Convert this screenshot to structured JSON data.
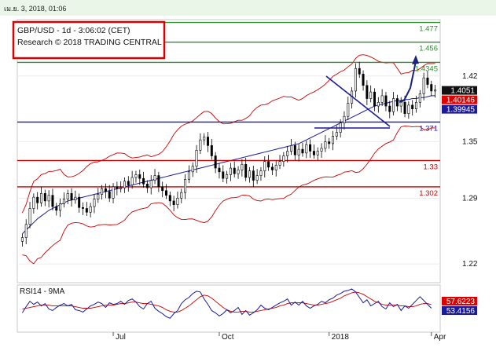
{
  "header": {
    "timestamp": "เม.ย. 3, 2018, 01:06",
    "title_line1": "GBP/USD - 1d - 3:06:02 (CET)",
    "title_line2": "Research © 2018 TRADING CENTRAL"
  },
  "colors": {
    "resistance": "#2e8b2e",
    "support_blue": "#1a1a9a",
    "support_red": "#cc0000",
    "candle": "#000000",
    "bollinger": "#cc0000",
    "ma": "#1a1a9a",
    "rsi": "#1a1a9a",
    "rsi_ma": "#cc0000",
    "projection": "#1a237e",
    "header_bg": "#eaf6e8"
  },
  "chart_data": [
    {
      "type": "candlestick",
      "ylim": [
        1.2,
        1.48
      ],
      "y_ticks": [
        "1.42",
        "1.35",
        "1.29",
        "1.22"
      ],
      "x_ticks": [
        "Jul",
        "Oct",
        "2018",
        "Apr"
      ],
      "levels": [
        {
          "value": 1.477,
          "label": "1.477",
          "color": "green"
        },
        {
          "value": 1.456,
          "label": "1.456",
          "color": "green"
        },
        {
          "value": 1.4345,
          "label": "1.4345",
          "color": "green"
        },
        {
          "value": 1.371,
          "label": "1.371",
          "color": "blue"
        },
        {
          "value": 1.33,
          "label": "1.33",
          "color": "red"
        },
        {
          "value": 1.302,
          "label": "1.302",
          "color": "red"
        }
      ],
      "price_tags": [
        {
          "value": 1.4051,
          "label": "1.4051",
          "style": "black"
        },
        {
          "value": 1.40146,
          "label": "1.40146",
          "style": "red"
        },
        {
          "value": 1.39945,
          "label": "1.39945",
          "style": "blue"
        }
      ],
      "close_series": [
        1.248,
        1.262,
        1.279,
        1.291,
        1.285,
        1.295,
        1.287,
        1.293,
        1.281,
        1.277,
        1.284,
        1.289,
        1.295,
        1.288,
        1.291,
        1.28,
        1.279,
        1.275,
        1.281,
        1.289,
        1.294,
        1.3,
        1.297,
        1.29,
        1.302,
        1.3,
        1.301,
        1.308,
        1.304,
        1.312,
        1.315,
        1.311,
        1.305,
        1.301,
        1.309,
        1.314,
        1.302,
        1.298,
        1.293,
        1.287,
        1.283,
        1.29,
        1.296,
        1.31,
        1.318,
        1.324,
        1.341,
        1.352,
        1.355,
        1.346,
        1.335,
        1.322,
        1.318,
        1.311,
        1.315,
        1.322,
        1.316,
        1.32,
        1.326,
        1.312,
        1.319,
        1.309,
        1.314,
        1.319,
        1.329,
        1.323,
        1.32,
        1.325,
        1.329,
        1.335,
        1.34,
        1.346,
        1.336,
        1.342,
        1.338,
        1.347,
        1.34,
        1.336,
        1.34,
        1.343,
        1.35,
        1.348,
        1.356,
        1.36,
        1.37,
        1.377,
        1.391,
        1.404,
        1.428,
        1.422,
        1.41,
        1.396,
        1.403,
        1.388,
        1.392,
        1.399,
        1.388,
        1.382,
        1.396,
        1.388,
        1.392,
        1.38,
        1.389,
        1.385,
        1.392,
        1.401,
        1.418,
        1.411,
        1.404,
        1.4051
      ],
      "ma_series": [
        1.252,
        1.256,
        1.26,
        1.264,
        1.268,
        1.271,
        1.274,
        1.277,
        1.279,
        1.281,
        1.283,
        1.285,
        1.287,
        1.288,
        1.289,
        1.29,
        1.291,
        1.292,
        1.293,
        1.294,
        1.295,
        1.296,
        1.297,
        1.298,
        1.299,
        1.3,
        1.301,
        1.302,
        1.303,
        1.304,
        1.305,
        1.306,
        1.307,
        1.308,
        1.309,
        1.31,
        1.311,
        1.312,
        1.313,
        1.314,
        1.315,
        1.316,
        1.317,
        1.318,
        1.319,
        1.32,
        1.321,
        1.322,
        1.323,
        1.324,
        1.325,
        1.326,
        1.327,
        1.328,
        1.329,
        1.33,
        1.331,
        1.332,
        1.333,
        1.334,
        1.335,
        1.336,
        1.337,
        1.338,
        1.339,
        1.34,
        1.341,
        1.342,
        1.343,
        1.344,
        1.345,
        1.346,
        1.347,
        1.348,
        1.35,
        1.352,
        1.354,
        1.356,
        1.358,
        1.36,
        1.362,
        1.364,
        1.366,
        1.368,
        1.37,
        1.372,
        1.374,
        1.376,
        1.378,
        1.38,
        1.382,
        1.384,
        1.386,
        1.388,
        1.389,
        1.39,
        1.391,
        1.392,
        1.393,
        1.394,
        1.394,
        1.395,
        1.395,
        1.396,
        1.396,
        1.397,
        1.397,
        1.398,
        1.399,
        1.399
      ]
    },
    {
      "type": "line",
      "title": "RSI14 - 9MA",
      "price_tags": [
        {
          "value": 57.6223,
          "label": "57.6223",
          "style": "red"
        },
        {
          "value": 53.4156,
          "label": "53.4156",
          "style": "blue"
        }
      ],
      "ylim": [
        25,
        80
      ],
      "rsi_series": [
        47,
        55,
        62,
        58,
        61,
        56,
        59,
        52,
        50,
        54,
        57,
        59,
        56,
        58,
        51,
        50,
        48,
        52,
        56,
        58,
        61,
        59,
        54,
        60,
        58,
        59,
        62,
        58,
        63,
        65,
        61,
        55,
        52,
        59,
        62,
        53,
        49,
        46,
        42,
        40,
        46,
        50,
        59,
        64,
        67,
        72,
        75,
        74,
        65,
        58,
        50,
        47,
        43,
        46,
        51,
        47,
        50,
        54,
        45,
        50,
        44,
        47,
        51,
        57,
        53,
        51,
        54,
        57,
        60,
        62,
        65,
        57,
        61,
        57,
        62,
        56,
        53,
        56,
        58,
        62,
        60,
        64,
        66,
        70,
        72,
        75,
        76,
        78,
        74,
        67,
        60,
        64,
        56,
        59,
        62,
        55,
        52,
        60,
        55,
        58,
        50,
        56,
        53,
        58,
        63,
        68,
        63,
        58,
        53
      ],
      "rsi_ma_series": [
        52,
        53,
        54,
        55,
        56,
        57,
        57,
        57,
        56,
        56,
        56,
        56,
        56,
        56,
        55,
        54,
        53,
        53,
        53,
        54,
        55,
        56,
        57,
        57,
        57,
        58,
        59,
        59,
        60,
        61,
        61,
        60,
        59,
        59,
        58,
        57,
        56,
        54,
        51,
        49,
        48,
        48,
        50,
        53,
        56,
        60,
        64,
        68,
        70,
        69,
        66,
        62,
        58,
        54,
        51,
        49,
        48,
        48,
        49,
        49,
        48,
        48,
        49,
        50,
        51,
        52,
        53,
        54,
        56,
        57,
        59,
        60,
        60,
        60,
        60,
        59,
        58,
        57,
        57,
        58,
        59,
        60,
        62,
        64,
        66,
        69,
        71,
        73,
        74,
        73,
        71,
        68,
        65,
        62,
        60,
        58,
        57,
        57,
        57,
        57,
        56,
        56,
        55,
        55,
        56,
        58,
        59,
        59,
        57.6
      ]
    }
  ]
}
